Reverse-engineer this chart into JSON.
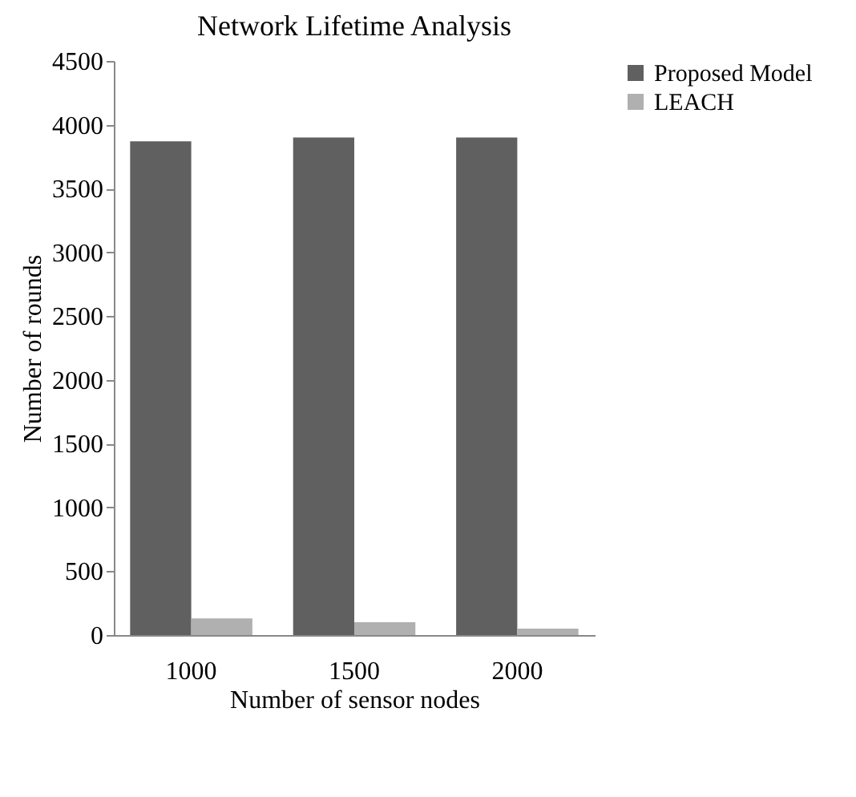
{
  "chart_data": {
    "type": "bar",
    "title": "Network Lifetime Analysis",
    "xlabel": "Number of sensor nodes",
    "ylabel": "Number of rounds",
    "categories": [
      "1000",
      "1500",
      "2000"
    ],
    "series": [
      {
        "name": "Proposed Model",
        "color": "#606060",
        "values": [
          3870,
          3900,
          3900
        ]
      },
      {
        "name": "LEACH",
        "color": "#b0b0b0",
        "values": [
          130,
          100,
          50
        ]
      }
    ],
    "ylim": [
      0,
      4500
    ],
    "yticks": [
      0,
      500,
      1000,
      1500,
      2000,
      2500,
      3000,
      3500,
      4000,
      4500
    ],
    "grid": false,
    "legend": "right"
  }
}
